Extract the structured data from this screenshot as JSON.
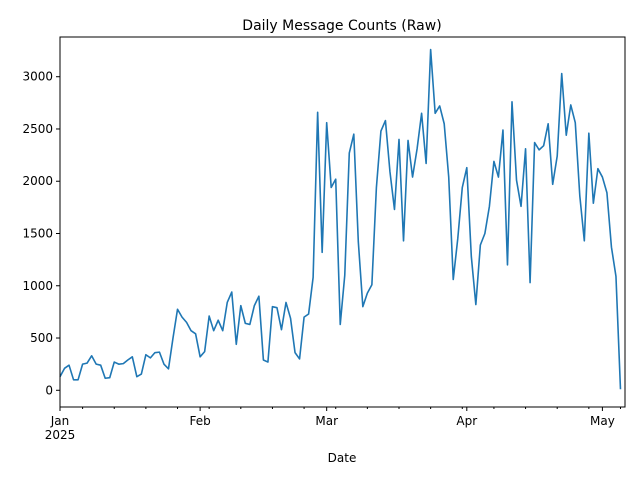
{
  "chart_data": {
    "type": "line",
    "title": "Daily Message Counts (Raw)",
    "xlabel": "Date",
    "ylabel": "",
    "x_start": "2025-01-01",
    "x_end": "2025-05-06",
    "ylim": [
      -160,
      3380
    ],
    "grid": false,
    "legend": "none",
    "line_color": "#1f77b4",
    "x_major_ticks": [
      {
        "date": "2025-01-01",
        "label": "Jan",
        "sublabel": "2025"
      },
      {
        "date": "2025-02-01",
        "label": "Feb",
        "sublabel": ""
      },
      {
        "date": "2025-03-01",
        "label": "Mar",
        "sublabel": ""
      },
      {
        "date": "2025-04-01",
        "label": "Apr",
        "sublabel": ""
      },
      {
        "date": "2025-05-01",
        "label": "May",
        "sublabel": ""
      }
    ],
    "x_minor_ticks": [
      "2025-01-06",
      "2025-01-13",
      "2025-01-20",
      "2025-01-27",
      "2025-02-03",
      "2025-02-10",
      "2025-02-17",
      "2025-02-24",
      "2025-03-03",
      "2025-03-10",
      "2025-03-17",
      "2025-03-24",
      "2025-03-31",
      "2025-04-07",
      "2025-04-14",
      "2025-04-21",
      "2025-04-28",
      "2025-05-05"
    ],
    "y_ticks": [
      0,
      500,
      1000,
      1500,
      2000,
      2500,
      3000
    ],
    "y_tick_labels": [
      "0",
      "500",
      "1000",
      "1500",
      "2000",
      "2500",
      "3000"
    ],
    "series": [
      {
        "name": "",
        "x": [
          "2025-01-01",
          "2025-01-02",
          "2025-01-03",
          "2025-01-04",
          "2025-01-05",
          "2025-01-06",
          "2025-01-07",
          "2025-01-08",
          "2025-01-09",
          "2025-01-10",
          "2025-01-11",
          "2025-01-12",
          "2025-01-13",
          "2025-01-14",
          "2025-01-15",
          "2025-01-16",
          "2025-01-17",
          "2025-01-18",
          "2025-01-19",
          "2025-01-20",
          "2025-01-21",
          "2025-01-22",
          "2025-01-23",
          "2025-01-24",
          "2025-01-25",
          "2025-01-26",
          "2025-01-27",
          "2025-01-28",
          "2025-01-29",
          "2025-01-30",
          "2025-01-31",
          "2025-02-01",
          "2025-02-02",
          "2025-02-03",
          "2025-02-04",
          "2025-02-05",
          "2025-02-06",
          "2025-02-07",
          "2025-02-08",
          "2025-02-09",
          "2025-02-10",
          "2025-02-11",
          "2025-02-12",
          "2025-02-13",
          "2025-02-14",
          "2025-02-15",
          "2025-02-16",
          "2025-02-17",
          "2025-02-18",
          "2025-02-19",
          "2025-02-20",
          "2025-02-21",
          "2025-02-22",
          "2025-02-23",
          "2025-02-24",
          "2025-02-25",
          "2025-02-26",
          "2025-02-27",
          "2025-02-28",
          "2025-03-01",
          "2025-03-02",
          "2025-03-03",
          "2025-03-04",
          "2025-03-05",
          "2025-03-06",
          "2025-03-07",
          "2025-03-08",
          "2025-03-09",
          "2025-03-10",
          "2025-03-11",
          "2025-03-12",
          "2025-03-13",
          "2025-03-14",
          "2025-03-15",
          "2025-03-16",
          "2025-03-17",
          "2025-03-18",
          "2025-03-19",
          "2025-03-20",
          "2025-03-21",
          "2025-03-22",
          "2025-03-23",
          "2025-03-24",
          "2025-03-25",
          "2025-03-26",
          "2025-03-27",
          "2025-03-28",
          "2025-03-29",
          "2025-03-30",
          "2025-03-31",
          "2025-04-01",
          "2025-04-02",
          "2025-04-03",
          "2025-04-04",
          "2025-04-05",
          "2025-04-06",
          "2025-04-07",
          "2025-04-08",
          "2025-04-09",
          "2025-04-10",
          "2025-04-11",
          "2025-04-12",
          "2025-04-13",
          "2025-04-14",
          "2025-04-15",
          "2025-04-16",
          "2025-04-17",
          "2025-04-18",
          "2025-04-19",
          "2025-04-20",
          "2025-04-21",
          "2025-04-22",
          "2025-04-23",
          "2025-04-24",
          "2025-04-25",
          "2025-04-26",
          "2025-04-27",
          "2025-04-28",
          "2025-04-29",
          "2025-04-30",
          "2025-05-01",
          "2025-05-02",
          "2025-05-03",
          "2025-05-04",
          "2025-05-05"
        ],
        "values": [
          130,
          210,
          240,
          100,
          100,
          250,
          260,
          330,
          250,
          240,
          115,
          120,
          270,
          250,
          255,
          290,
          320,
          130,
          155,
          340,
          310,
          360,
          365,
          250,
          205,
          500,
          775,
          700,
          650,
          570,
          540,
          320,
          370,
          710,
          570,
          670,
          570,
          840,
          940,
          440,
          810,
          640,
          630,
          810,
          900,
          290,
          270,
          800,
          790,
          580,
          840,
          690,
          360,
          300,
          700,
          730,
          1080,
          2660,
          1320,
          2560,
          1940,
          2020,
          630,
          1100,
          2270,
          2450,
          1420,
          800,
          930,
          1010,
          1940,
          2480,
          2580,
          2090,
          1730,
          2400,
          1430,
          2390,
          2040,
          2310,
          2650,
          2170,
          3260,
          2650,
          2720,
          2550,
          2040,
          1060,
          1450,
          1940,
          2130,
          1280,
          820,
          1390,
          1500,
          1760,
          2190,
          2040,
          2490,
          1200,
          2760,
          2010,
          1760,
          2310,
          1030,
          2370,
          2300,
          2340,
          2550,
          1970,
          2240,
          3030,
          2440,
          2730,
          2560,
          1860,
          1430,
          2460,
          1790,
          2120,
          2040,
          1890,
          1370,
          1090,
          10
        ]
      }
    ]
  }
}
